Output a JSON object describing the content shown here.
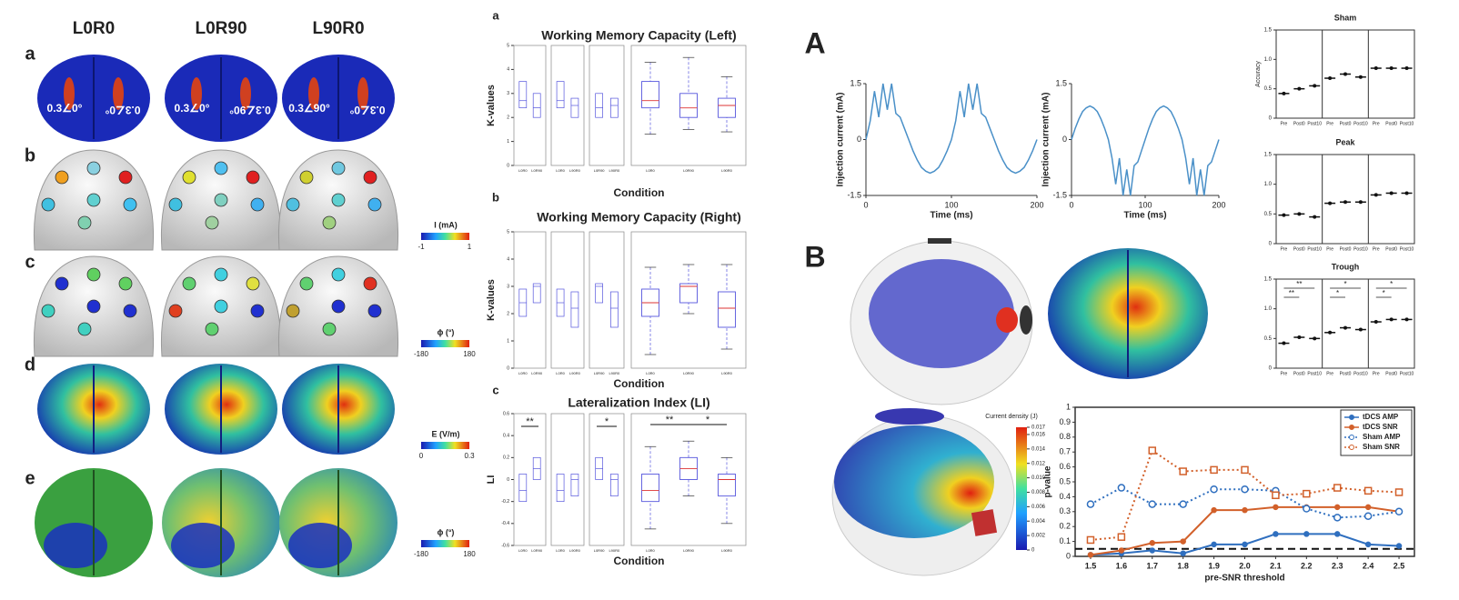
{
  "headers": [
    "L0R0",
    "L0R90",
    "L90R0"
  ],
  "row_letters": [
    "a",
    "b",
    "c",
    "d",
    "e"
  ],
  "phasors": [
    "0.3∠0°",
    "0.3∠0°",
    "0.3∠0°",
    "0.3∠90°",
    "0.3∠90°",
    "0.3∠0°"
  ],
  "colorbars": [
    {
      "label": "I (mA)",
      "min": -1,
      "max": 1
    },
    {
      "label": "ϕ (°)",
      "min": -180,
      "max": 180
    },
    {
      "label": "E (V/m)",
      "min": 0,
      "max": 0.3
    },
    {
      "label": "ϕ (°)",
      "min": -180,
      "max": 180
    }
  ],
  "mid_letters": [
    "a",
    "b",
    "c"
  ],
  "fig_letters": [
    "A",
    "B"
  ],
  "current_density": {
    "label": "Current density (J)",
    "ticks": [
      0.017,
      0.016,
      0.014,
      0.012,
      {
        "value": 0.01,
        "label": "0.010"
      },
      0.008,
      0.006,
      0.004,
      0.002,
      0
    ]
  },
  "chart_data": [
    {
      "type": "box",
      "title": "Working Memory Capacity (Left)",
      "ylabel": "K-values",
      "xlabel": "Condition",
      "ylim": [
        0,
        5
      ],
      "yticks": [
        0,
        1,
        2,
        3,
        4,
        5
      ],
      "pair_labels": [
        [
          "L0R0",
          "L0R90"
        ],
        [
          "L0R0",
          "L90R0"
        ],
        [
          "L0R90",
          "L90R0"
        ]
      ],
      "categories": [
        "L0R0",
        "L0R90",
        "L90R0"
      ],
      "color": "#5555dd",
      "median_color": "#dd3333",
      "min": [
        1.3,
        1.5,
        1.4
      ],
      "q1": [
        2.4,
        2.0,
        2.0
      ],
      "median": [
        2.7,
        2.4,
        2.5
      ],
      "q3": [
        3.5,
        3.0,
        2.8
      ],
      "max": [
        4.3,
        4.5,
        3.7
      ]
    },
    {
      "type": "box",
      "title": "Working Memory Capacity (Right)",
      "ylabel": "K-values",
      "xlabel": "Condition",
      "ylim": [
        0,
        5
      ],
      "yticks": [
        0,
        1,
        2,
        3,
        4,
        5
      ],
      "pair_labels": [
        [
          "L0R0",
          "L0R90"
        ],
        [
          "L0R0",
          "L90R0"
        ],
        [
          "L0R90",
          "L90R0"
        ]
      ],
      "categories": [
        "L0R0",
        "L0R90",
        "L90R0"
      ],
      "color": "#5555dd",
      "median_color": "#dd3333",
      "min": [
        0.5,
        2.0,
        0.7
      ],
      "q1": [
        1.9,
        2.4,
        1.5
      ],
      "median": [
        2.4,
        3.0,
        2.2
      ],
      "q3": [
        2.9,
        3.1,
        2.8
      ],
      "max": [
        3.7,
        3.8,
        3.8
      ]
    },
    {
      "type": "box",
      "title": "Lateralization Index (LI)",
      "ylabel": "LI",
      "xlabel": "Condition",
      "ylim": [
        -0.6,
        0.6
      ],
      "yticks": [
        -0.6,
        -0.4,
        -0.2,
        0,
        0.2,
        0.4,
        0.6
      ],
      "pair_labels": [
        [
          "L0R0",
          "L0R90"
        ],
        [
          "L0R0",
          "L90R0"
        ],
        [
          "L0R90",
          "L90R0"
        ]
      ],
      "pair_annotations": [
        "**",
        null,
        "*"
      ],
      "annotations": [
        "**",
        "*"
      ],
      "categories": [
        "L0R0",
        "L0R90",
        "L90R0"
      ],
      "color": "#5555dd",
      "median_color": "#dd3333",
      "min": [
        -0.45,
        -0.15,
        -0.4
      ],
      "q1": [
        -0.2,
        0.0,
        -0.15
      ],
      "median": [
        -0.1,
        0.1,
        0.0
      ],
      "q3": [
        0.05,
        0.2,
        0.05
      ],
      "max": [
        0.3,
        0.35,
        0.2
      ]
    },
    {
      "type": "line",
      "xlabel": "Time (ms)",
      "ylabel": "Injection current (mA)",
      "color": "#4a90c8",
      "xlim": [
        0,
        200
      ],
      "xticks": [
        0,
        100,
        200
      ],
      "ylim": [
        -1.5,
        1.5
      ],
      "yticks": [
        -1.5,
        0,
        1.5
      ],
      "x": [
        0,
        5,
        10,
        15,
        20,
        25,
        30,
        35,
        40,
        45,
        50,
        55,
        60,
        65,
        70,
        75,
        80,
        85,
        90,
        95,
        100,
        105,
        110,
        115,
        120,
        125,
        130,
        135,
        140,
        145,
        150,
        155,
        160,
        165,
        170,
        175,
        180,
        185,
        190,
        195,
        200
      ],
      "values": [
        0,
        0.5,
        1.3,
        0.6,
        1.5,
        0.8,
        1.5,
        0.7,
        0.6,
        0.3,
        0,
        -0.3,
        -0.55,
        -0.75,
        -0.85,
        -0.9,
        -0.85,
        -0.75,
        -0.55,
        -0.3,
        0,
        0.5,
        1.3,
        0.6,
        1.5,
        0.8,
        1.5,
        0.7,
        0.6,
        0.3,
        0,
        -0.3,
        -0.55,
        -0.75,
        -0.85,
        -0.9,
        -0.85,
        -0.75,
        -0.55,
        -0.3,
        0
      ]
    },
    {
      "type": "line",
      "xlabel": "Time (ms)",
      "ylabel": "Injection current (mA)",
      "color": "#4a90c8",
      "xlim": [
        0,
        200
      ],
      "xticks": [
        0,
        100,
        200
      ],
      "ylim": [
        -1.5,
        1.5
      ],
      "yticks": [
        -1.5,
        0,
        1.5
      ],
      "x": [
        0,
        5,
        10,
        15,
        20,
        25,
        30,
        35,
        40,
        45,
        50,
        55,
        60,
        65,
        70,
        75,
        80,
        85,
        90,
        95,
        100,
        105,
        110,
        115,
        120,
        125,
        130,
        135,
        140,
        145,
        150,
        155,
        160,
        165,
        170,
        175,
        180,
        185,
        190,
        195,
        200
      ],
      "values": [
        0,
        0.3,
        0.55,
        0.75,
        0.85,
        0.9,
        0.85,
        0.75,
        0.55,
        0.3,
        0,
        -0.5,
        -1.2,
        -0.5,
        -1.5,
        -0.8,
        -1.5,
        -0.7,
        -0.6,
        -0.3,
        0,
        0.3,
        0.55,
        0.75,
        0.85,
        0.9,
        0.85,
        0.75,
        0.55,
        0.3,
        0,
        -0.5,
        -1.2,
        -0.5,
        -1.5,
        -0.8,
        -1.5,
        -0.7,
        -0.6,
        -0.3,
        0
      ]
    },
    {
      "type": "dot",
      "title": "Sham",
      "ylabel": "Accuracy",
      "color": "#111111",
      "ylim": [
        0,
        1.5
      ],
      "yticks": [
        0,
        0.5,
        {
          "value": 1,
          "label": "1.0"
        },
        1.5
      ],
      "categories": [
        "Pre",
        "Post0",
        "Post10",
        "Pre",
        "Post0",
        "Post10",
        "Pre",
        "Post0",
        "Post10"
      ],
      "values": [
        0.42,
        0.5,
        0.55,
        0.68,
        0.75,
        0.7,
        0.85,
        0.85,
        0.85
      ]
    },
    {
      "type": "dot",
      "title": "Peak",
      "color": "#111111",
      "ylim": [
        0,
        1.5
      ],
      "yticks": [
        0,
        0.5,
        {
          "value": 1,
          "label": "1.0"
        },
        1.5
      ],
      "categories": [
        "Pre",
        "Post0",
        "Post10",
        "Pre",
        "Post0",
        "Post10",
        "Pre",
        "Post0",
        "Post10"
      ],
      "values": [
        0.48,
        0.5,
        0.45,
        0.68,
        0.7,
        0.7,
        0.82,
        0.85,
        0.85
      ]
    },
    {
      "type": "dot",
      "title": "Trough",
      "color": "#111111",
      "ylim": [
        0,
        1.5
      ],
      "yticks": [
        0,
        0.5,
        {
          "value": 1,
          "label": "1.0"
        },
        1.5
      ],
      "categories": [
        "Pre",
        "Post0",
        "Post10",
        "Pre",
        "Post0",
        "Post10",
        "Pre",
        "Post0",
        "Post10"
      ],
      "values": [
        0.42,
        0.52,
        0.5,
        0.6,
        0.68,
        0.65,
        0.78,
        0.82,
        0.82
      ],
      "annotations": [
        "**",
        "**",
        "*",
        "*",
        "*",
        "*"
      ]
    },
    {
      "type": "line",
      "xlabel": "pre-SNR threshold",
      "ylabel": "p-value",
      "legend": "upper right",
      "hline": 0.05,
      "xlim": [
        1.45,
        2.55
      ],
      "xticks": [
        1.5,
        1.6,
        1.7,
        1.8,
        1.9,
        {
          "value": 2,
          "label": "2.0"
        },
        2.1,
        2.2,
        2.3,
        2.4,
        2.5
      ],
      "ylim": [
        0,
        1
      ],
      "yticks": [
        0,
        0.1,
        0.2,
        0.3,
        0.4,
        0.5,
        0.6,
        0.7,
        0.8,
        0.9,
        1
      ],
      "x": [
        1.5,
        1.6,
        1.7,
        1.8,
        1.9,
        2.0,
        2.1,
        2.2,
        2.3,
        2.4,
        2.5
      ],
      "series": [
        {
          "name": "tDCS AMP",
          "color": "#2f6fbf",
          "dash": false,
          "marker": "dot",
          "values": [
            0.01,
            0.02,
            0.04,
            0.02,
            0.08,
            0.08,
            0.15,
            0.15,
            0.15,
            0.08,
            0.07
          ]
        },
        {
          "name": "tDCS SNR",
          "color": "#d2602a",
          "dash": false,
          "marker": "dot",
          "values": [
            0.01,
            0.04,
            0.09,
            0.1,
            0.31,
            0.31,
            0.33,
            0.33,
            0.33,
            0.33,
            0.3
          ]
        },
        {
          "name": "Sham AMP",
          "color": "#2f6fbf",
          "dash": true,
          "marker": "circle",
          "values": [
            0.35,
            0.46,
            0.35,
            0.35,
            0.45,
            0.45,
            0.44,
            0.32,
            0.26,
            0.27,
            0.3
          ]
        },
        {
          "name": "Sham SNR",
          "color": "#d2602a",
          "dash": true,
          "marker": "square",
          "values": [
            0.11,
            0.13,
            0.71,
            0.57,
            0.58,
            0.58,
            0.41,
            0.42,
            0.46,
            0.44,
            0.43
          ]
        }
      ]
    }
  ]
}
